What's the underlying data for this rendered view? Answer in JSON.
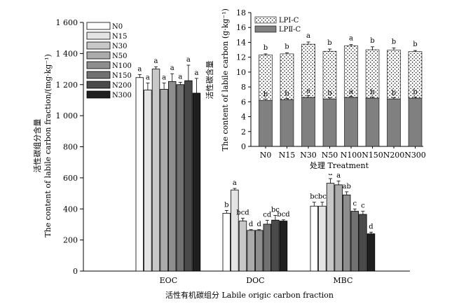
{
  "chart_data": [
    {
      "type": "bar",
      "title": "",
      "xlabel": "活性有机碳组分 Labile origic carbon fraction",
      "ylabel_cn": "活性碳组分含量",
      "ylabel_en": "The content of labile carbon fraction/(mg·kg⁻¹)",
      "ylim": [
        0,
        1600
      ],
      "yticks": [
        0,
        200,
        400,
        600,
        800,
        1000,
        1200,
        1400,
        1600
      ],
      "ytick_labels": [
        "0",
        "200",
        "400",
        "600",
        "800",
        "1 000",
        "1 200",
        "1 400",
        "1 600"
      ],
      "categories": [
        "EOC",
        "DOC",
        "MBC"
      ],
      "legend_position": "top-left",
      "series": [
        {
          "name": "N0",
          "color": "#ffffff",
          "values": [
            1245,
            372,
            418
          ],
          "errors": [
            20,
            18,
            25
          ],
          "letters": [
            "a",
            "b",
            "bc"
          ]
        },
        {
          "name": "N15",
          "color": "#e4e4e4",
          "values": [
            1165,
            522,
            418
          ],
          "errors": [
            45,
            10,
            25
          ],
          "letters": [
            "a",
            "a",
            "bc"
          ]
        },
        {
          "name": "N30",
          "color": "#c8c8c8",
          "values": [
            1300,
            322,
            565
          ],
          "errors": [
            15,
            18,
            30
          ],
          "letters": [
            "a",
            "bcd",
            "a"
          ]
        },
        {
          "name": "N50",
          "color": "#ababab",
          "values": [
            1170,
            262,
            555
          ],
          "errors": [
            40,
            5,
            25
          ],
          "letters": [
            "a",
            "d",
            "a"
          ]
        },
        {
          "name": "N100",
          "color": "#8e8e8e",
          "values": [
            1220,
            262,
            490
          ],
          "errors": [
            50,
            5,
            20
          ],
          "letters": [
            "a",
            "d",
            "ab"
          ]
        },
        {
          "name": "N150",
          "color": "#717171",
          "values": [
            1200,
            302,
            385
          ],
          "errors": [
            15,
            25,
            15
          ],
          "letters": [
            "a",
            "cd",
            "c"
          ]
        },
        {
          "name": "N200",
          "color": "#4a4a4a",
          "values": [
            1225,
            328,
            365
          ],
          "errors": [
            100,
            30,
            20
          ],
          "letters": [
            "a",
            "bc",
            "c"
          ]
        },
        {
          "name": "N300",
          "color": "#1f1f1f",
          "values": [
            1145,
            322,
            240
          ],
          "errors": [
            95,
            8,
            10
          ],
          "letters": [
            "a",
            "bcd",
            "d"
          ]
        }
      ]
    },
    {
      "type": "stacked-bar",
      "title": "",
      "xlabel": "处理 Treatment",
      "ylabel_cn": "活性碳含量",
      "ylabel_en": "The content of labile carbon (g·kg⁻¹)",
      "ylim": [
        0,
        18
      ],
      "yticks": [
        0,
        2,
        4,
        6,
        8,
        10,
        12,
        14,
        16,
        18
      ],
      "categories": [
        "N0",
        "N15",
        "N30",
        "N50",
        "N100",
        "N150",
        "N200",
        "N300"
      ],
      "legend_position": "top-left",
      "series": [
        {
          "name": "LPⅡ-C",
          "pattern": "solid-gray",
          "values": [
            6.2,
            6.3,
            6.6,
            6.4,
            6.6,
            6.5,
            6.4,
            6.5
          ],
          "errors": [
            0.15,
            0.15,
            0.25,
            0.15,
            0.15,
            0.15,
            0.15,
            0.15
          ],
          "letters": [
            "b",
            "b",
            "a",
            "b",
            "a",
            "b",
            "b",
            "b"
          ]
        },
        {
          "name": "LPⅠ-C",
          "pattern": "dotted",
          "values": [
            6.1,
            6.15,
            7.15,
            6.4,
            6.95,
            6.5,
            6.55,
            6.25
          ],
          "errors": [
            0.15,
            0.15,
            0.3,
            0.3,
            0.15,
            0.4,
            0.3,
            0.15
          ],
          "letters": [
            "b",
            "b",
            "a",
            "b",
            "a",
            "b",
            "b",
            "b"
          ]
        }
      ]
    }
  ]
}
